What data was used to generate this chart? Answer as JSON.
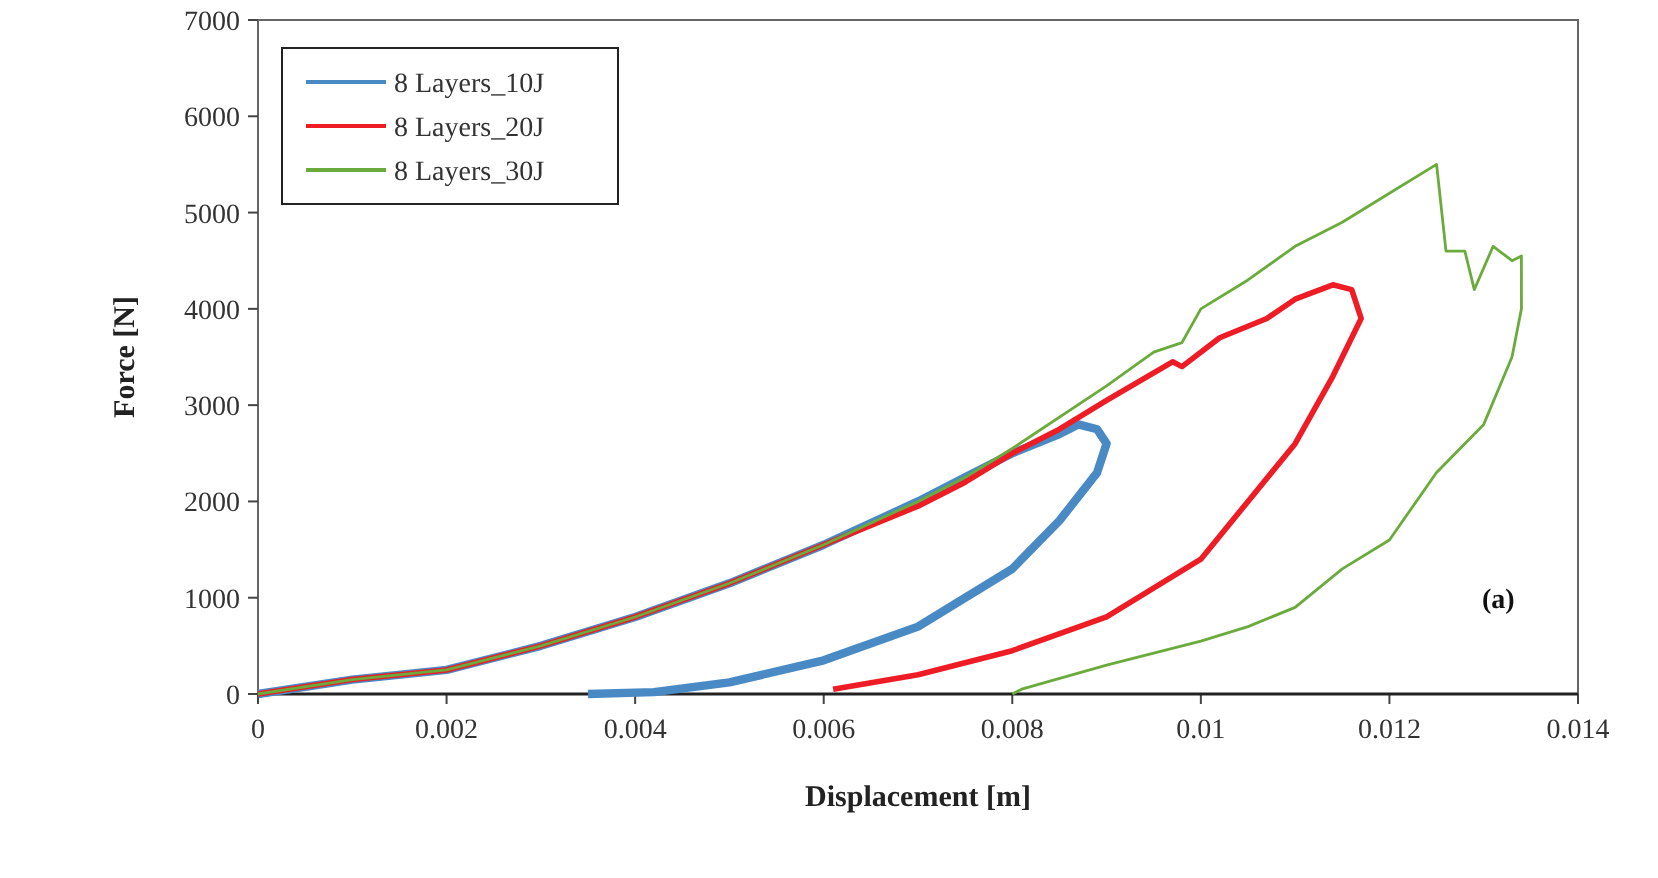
{
  "chart_data": {
    "type": "line",
    "xlabel": "Displacement [m]",
    "ylabel": "Force [N]",
    "xlim": [
      0,
      0.014
    ],
    "ylim": [
      0,
      7000
    ],
    "xticks": [
      0,
      0.002,
      0.004,
      0.006,
      0.008,
      0.01,
      0.012,
      0.014
    ],
    "yticks": [
      0,
      1000,
      2000,
      3000,
      4000,
      5000,
      6000,
      7000
    ],
    "grid": false,
    "legend": "top left",
    "marker": "none",
    "line_style": "solid",
    "annotations": [
      "(a)"
    ],
    "series": [
      {
        "name": "8 Layers_10J",
        "color": "#4a8ac4",
        "x": [
          0,
          0.001,
          0.002,
          0.003,
          0.004,
          0.005,
          0.006,
          0.007,
          0.0075,
          0.008,
          0.0085,
          0.0087,
          0.0089,
          0.009,
          0.0089,
          0.0085,
          0.008,
          0.007,
          0.006,
          0.005,
          0.0042,
          0.0035
        ],
        "values": [
          0,
          150,
          250,
          500,
          800,
          1150,
          1550,
          2000,
          2250,
          2500,
          2700,
          2800,
          2750,
          2600,
          2300,
          1800,
          1300,
          700,
          350,
          120,
          20,
          0
        ]
      },
      {
        "name": "8 Layers_20J",
        "color": "#ee1c25",
        "x": [
          0,
          0.001,
          0.002,
          0.003,
          0.004,
          0.005,
          0.006,
          0.007,
          0.0075,
          0.008,
          0.0085,
          0.009,
          0.0097,
          0.0098,
          0.0102,
          0.0107,
          0.011,
          0.0114,
          0.0116,
          0.0117,
          0.0114,
          0.011,
          0.0105,
          0.01,
          0.009,
          0.008,
          0.007,
          0.0061
        ],
        "values": [
          0,
          150,
          250,
          500,
          800,
          1150,
          1550,
          1950,
          2200,
          2500,
          2750,
          3050,
          3450,
          3400,
          3700,
          3900,
          4100,
          4250,
          4200,
          3900,
          3300,
          2600,
          2000,
          1400,
          800,
          450,
          200,
          50
        ]
      },
      {
        "name": "8 Layers_30J",
        "color": "#6aab3c",
        "x": [
          0,
          0.001,
          0.002,
          0.003,
          0.004,
          0.005,
          0.006,
          0.007,
          0.0075,
          0.008,
          0.009,
          0.0095,
          0.0098,
          0.01,
          0.0105,
          0.011,
          0.0115,
          0.012,
          0.0125,
          0.0126,
          0.0128,
          0.0129,
          0.0131,
          0.0133,
          0.0134,
          0.0134,
          0.0133,
          0.013,
          0.0125,
          0.012,
          0.0115,
          0.011,
          0.0105,
          0.01,
          0.009,
          0.0081,
          0.008
        ],
        "values": [
          0,
          150,
          250,
          500,
          800,
          1150,
          1550,
          2000,
          2250,
          2550,
          3200,
          3550,
          3650,
          4000,
          4300,
          4650,
          4900,
          5200,
          5500,
          4600,
          4600,
          4200,
          4650,
          4500,
          4550,
          4000,
          3500,
          2800,
          2300,
          1600,
          1300,
          900,
          700,
          550,
          300,
          50,
          0
        ]
      }
    ]
  }
}
